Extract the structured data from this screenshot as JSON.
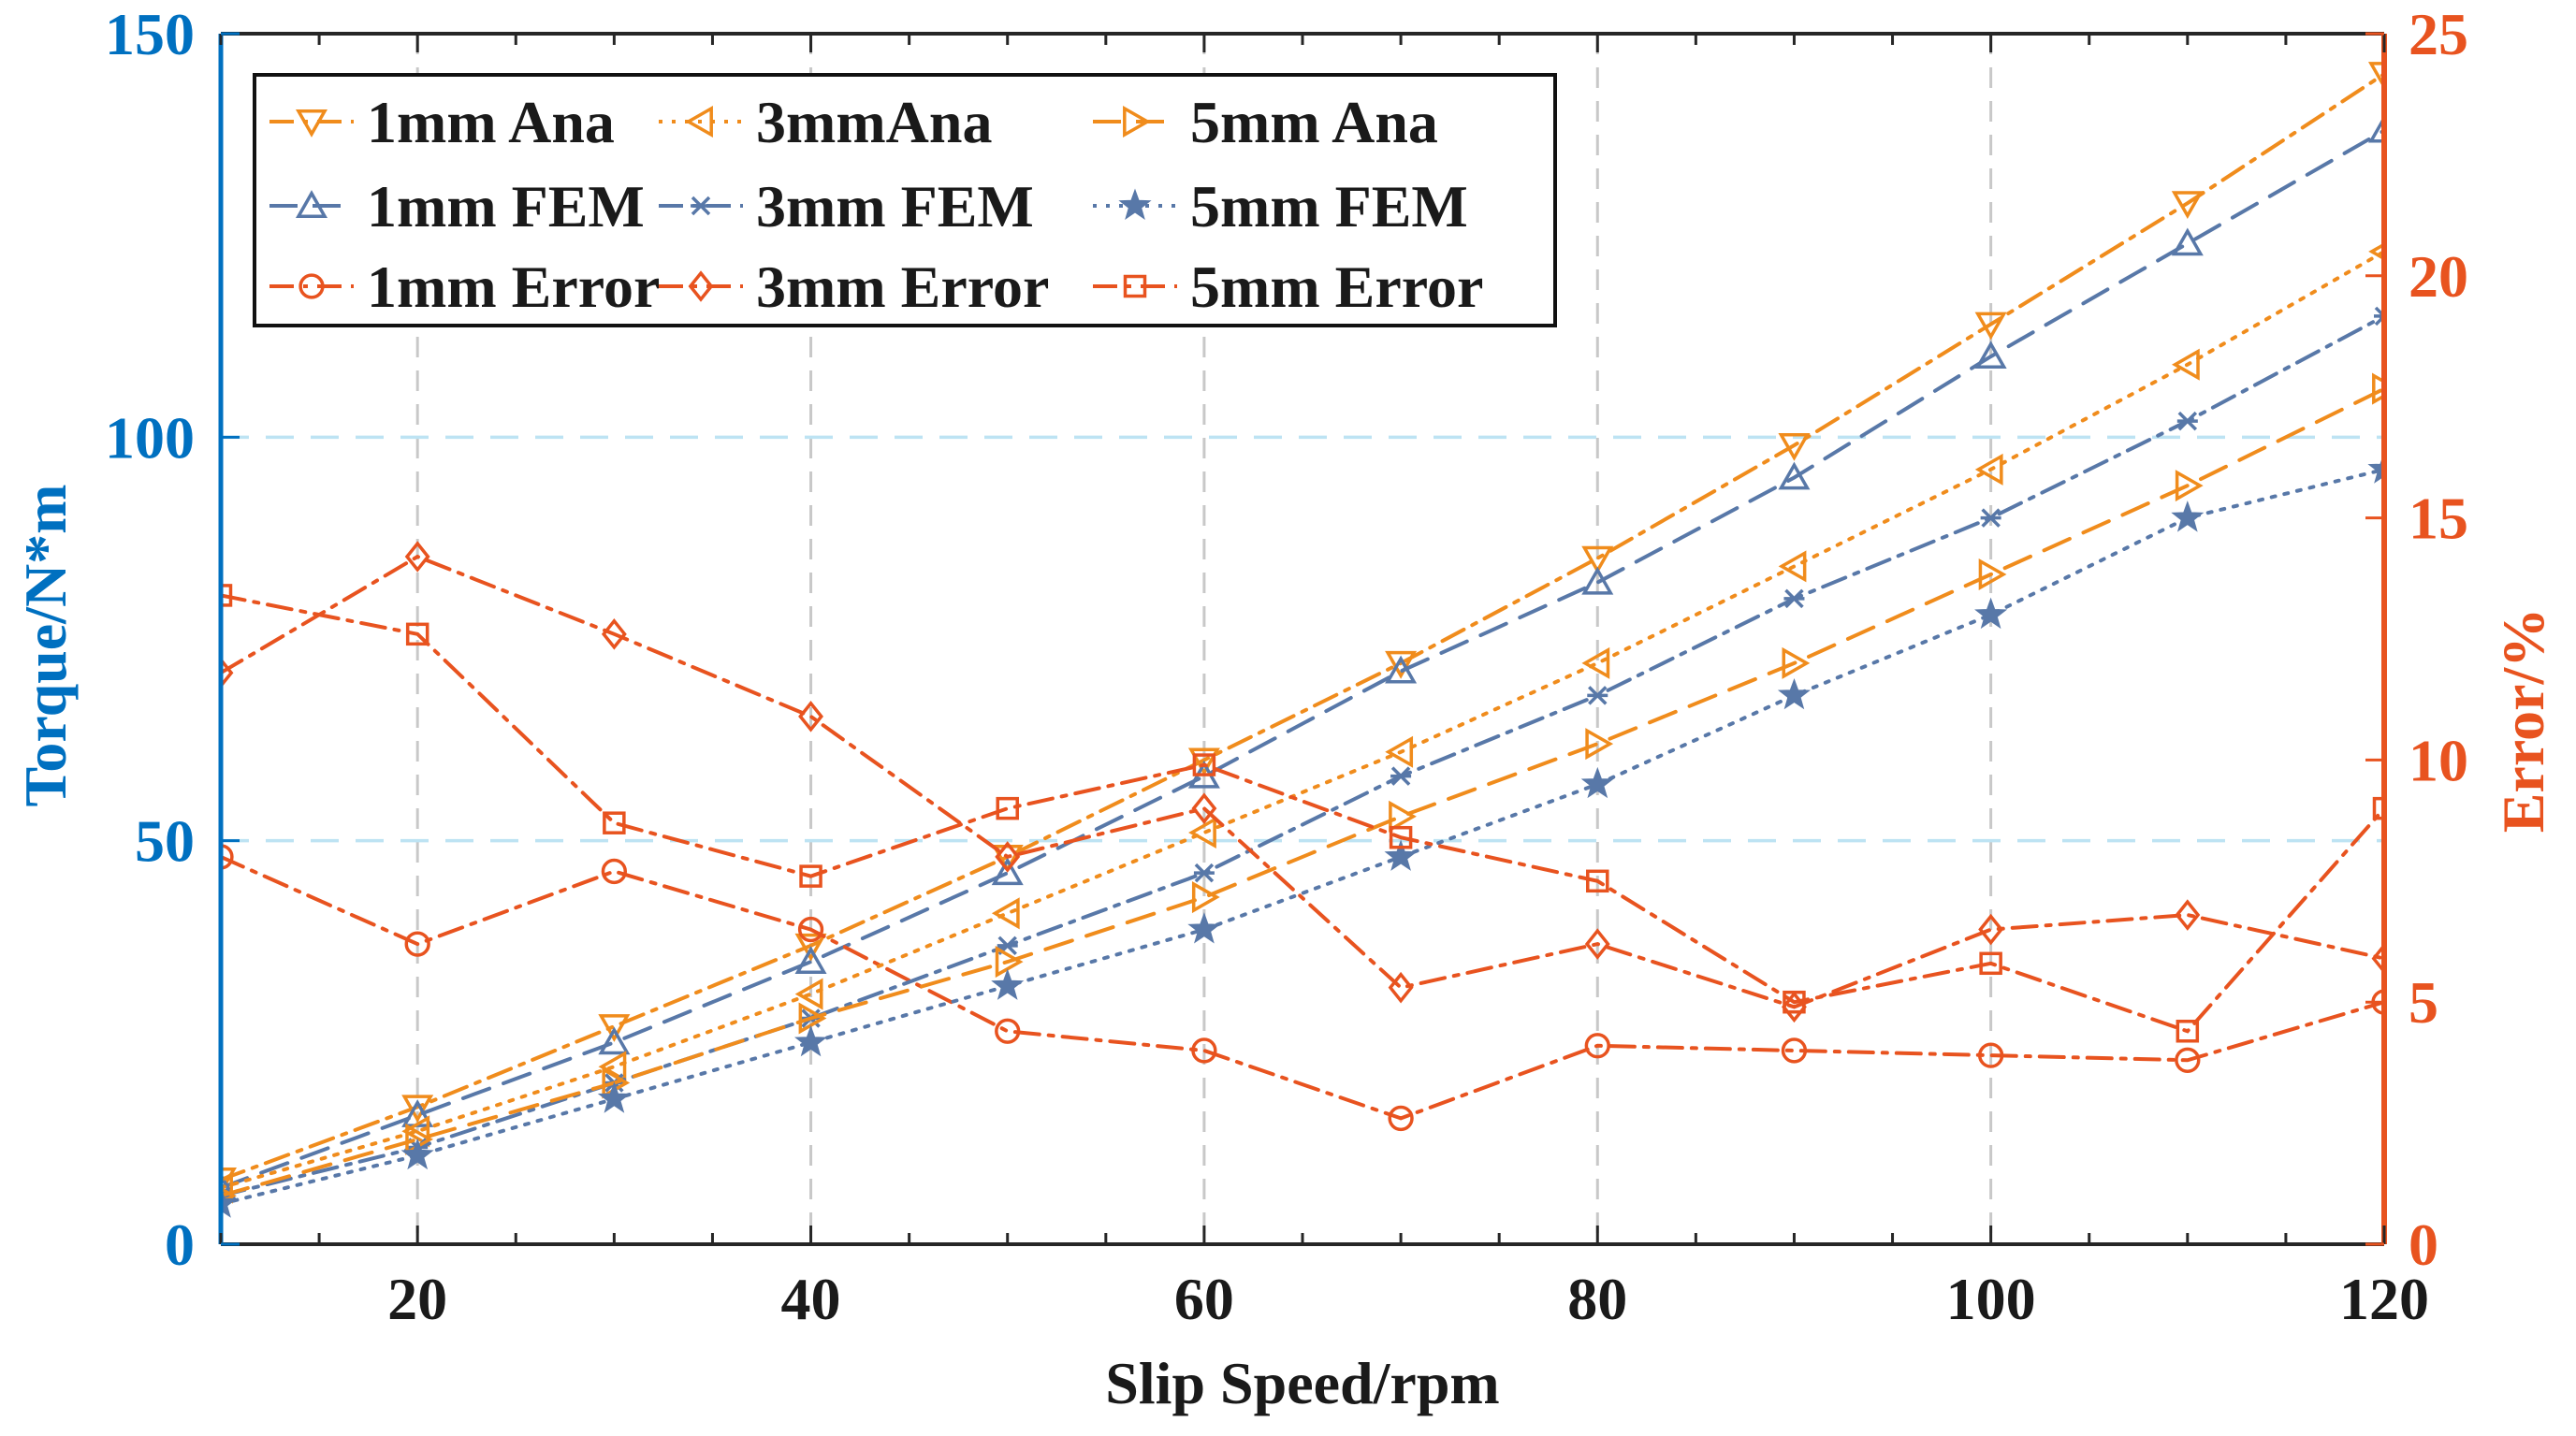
{
  "colors": {
    "left_axis": "#0070c0",
    "right_axis": "#e8531f",
    "ana": "#f08c1c",
    "fem": "#5878a8",
    "error": "#e8531f",
    "grid": "#c8c8c8",
    "grid_y": "#bde3f3"
  },
  "chart_data": {
    "type": "line",
    "title": "",
    "xlabel": "Slip Speed/rpm",
    "ylabel": "Torque/N*m",
    "y2label": "Error/%",
    "xlim": [
      10,
      120
    ],
    "ylim": [
      0,
      150
    ],
    "y2lim": [
      0,
      25
    ],
    "xticks": [
      "20",
      "40",
      "60",
      "80",
      "100",
      "120"
    ],
    "yticks": [
      "0",
      "50",
      "100",
      "150"
    ],
    "y2ticks": [
      "0",
      "5",
      "10",
      "15",
      "20",
      "25"
    ],
    "grid": true,
    "legend_position": "top-left",
    "x": [
      10,
      20,
      30,
      40,
      50,
      60,
      70,
      80,
      90,
      100,
      110,
      120
    ],
    "series": [
      {
        "name": "1mm Ana",
        "axis": "left",
        "color": "ana",
        "marker": "tri-down",
        "dash": "dashdot",
        "values": [
          8,
          17,
          27,
          37,
          48,
          60,
          72,
          85,
          99,
          114,
          129,
          145
        ]
      },
      {
        "name": "1mm FEM",
        "axis": "left",
        "color": "fem",
        "marker": "tri-up",
        "dash": "dash",
        "values": [
          7,
          16,
          25,
          35,
          46,
          58,
          71,
          82,
          95,
          110,
          124,
          138
        ]
      },
      {
        "name": "1mm Error",
        "axis": "right",
        "color": "error",
        "marker": "circle",
        "dash": "dashdot",
        "values": [
          8.0,
          6.2,
          7.7,
          6.5,
          4.4,
          4.0,
          2.6,
          4.1,
          4.0,
          3.9,
          3.8,
          5.0
        ]
      },
      {
        "name": "3mmAna",
        "axis": "left",
        "color": "ana",
        "marker": "tri-left",
        "dash": "dot",
        "values": [
          7,
          14,
          22,
          31,
          41,
          51,
          61,
          72,
          84,
          96,
          109,
          123
        ]
      },
      {
        "name": "3mm FEM",
        "axis": "left",
        "color": "fem",
        "marker": "x",
        "dash": "dashdot",
        "values": [
          6,
          12,
          20,
          28,
          37,
          46,
          58,
          68,
          80,
          90,
          102,
          115
        ]
      },
      {
        "name": "3mm Error",
        "axis": "right",
        "color": "error",
        "marker": "diamond",
        "dash": "dashdot",
        "values": [
          11.8,
          14.2,
          12.6,
          10.9,
          8.0,
          9.0,
          5.3,
          6.2,
          4.9,
          6.5,
          6.8,
          5.9
        ]
      },
      {
        "name": "5mm Ana",
        "axis": "left",
        "color": "ana",
        "marker": "tri-right",
        "dash": "dash",
        "values": [
          6,
          13,
          20,
          28,
          35,
          43,
          53,
          62,
          72,
          83,
          94,
          106
        ]
      },
      {
        "name": "5mm FEM",
        "axis": "left",
        "color": "fem",
        "marker": "star",
        "dash": "dot",
        "values": [
          5,
          11,
          18,
          25,
          32,
          39,
          48,
          57,
          68,
          78,
          90,
          96
        ]
      },
      {
        "name": "5mm Error",
        "axis": "right",
        "color": "error",
        "marker": "square",
        "dash": "dashdot",
        "values": [
          13.4,
          12.6,
          8.7,
          7.6,
          9.0,
          9.9,
          8.4,
          7.5,
          5.0,
          5.8,
          4.4,
          9.0
        ]
      }
    ]
  }
}
